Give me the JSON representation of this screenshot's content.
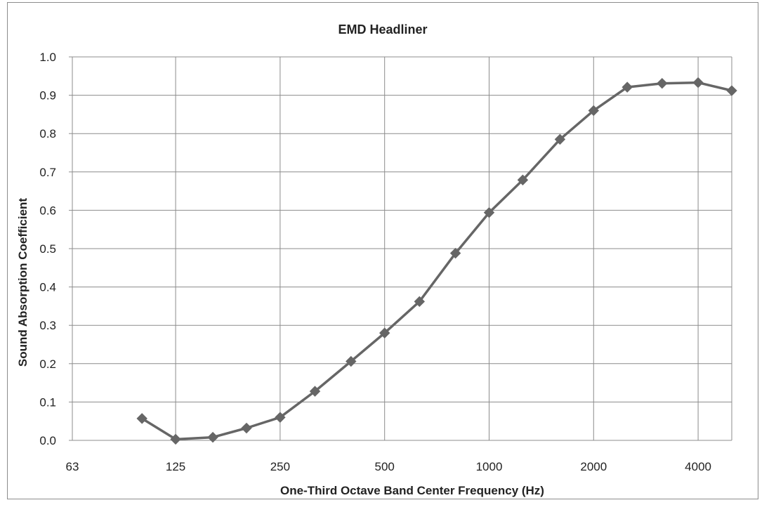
{
  "chart_data": {
    "type": "line",
    "title": "EMD Headliner",
    "xlabel": "One-Third Octave Band Center Frequency (Hz)",
    "ylabel": "Sound Absorption Coefficient",
    "x_scale": "log2",
    "xlim": [
      63,
      5000
    ],
    "ylim": [
      0,
      1.0
    ],
    "grid": true,
    "legend": "none",
    "x_ticks": [
      63,
      125,
      250,
      500,
      1000,
      2000,
      4000
    ],
    "y_ticks": [
      "0.0",
      "0.1",
      "0.2",
      "0.3",
      "0.4",
      "0.5",
      "0.6",
      "0.7",
      "0.8",
      "0.9",
      "1.0"
    ],
    "series": [
      {
        "color": "#666666",
        "marker": "diamond",
        "x": [
          100,
          125,
          160,
          200,
          250,
          315,
          400,
          500,
          630,
          800,
          1000,
          1250,
          1600,
          2000,
          2500,
          3150,
          4000,
          5000
        ],
        "y": [
          0.057,
          0.003,
          0.008,
          0.032,
          0.06,
          0.128,
          0.206,
          0.28,
          0.362,
          0.488,
          0.594,
          0.679,
          0.785,
          0.86,
          0.921,
          0.931,
          0.933,
          0.912
        ]
      }
    ]
  }
}
